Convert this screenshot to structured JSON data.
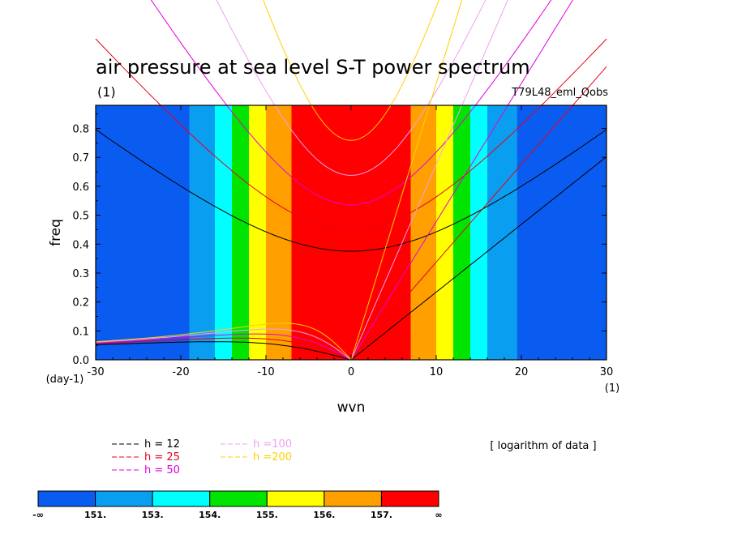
{
  "chart_data": {
    "type": "heatmap",
    "title": "air pressure at sea level S-T power spectrum",
    "units_left": "(1)",
    "experiment": "T79L48_eml_Qobs",
    "xlabel": "wvn",
    "ylabel": "freq",
    "x_units": "(1)",
    "y_units": "(day-1)",
    "xlim": [
      -30,
      30
    ],
    "ylim": [
      0,
      0.88
    ],
    "xticks": [
      -30,
      -20,
      -10,
      0,
      10,
      20,
      30
    ],
    "xtick_labels": [
      "-30",
      "-20",
      "-10",
      "0",
      "10",
      "20",
      "30"
    ],
    "yticks": [
      0,
      0.1,
      0.2,
      0.3,
      0.4,
      0.5,
      0.6,
      0.7,
      0.8
    ],
    "ytick_labels": [
      "0.0",
      "0.1",
      "0.2",
      "0.3",
      "0.4",
      "0.5",
      "0.6",
      "0.7",
      "0.8"
    ],
    "bands": [
      {
        "x0": -30,
        "x1": -19,
        "color": "#0a5cf0"
      },
      {
        "x0": -19,
        "x1": -16,
        "color": "#0a9ef0"
      },
      {
        "x0": -16,
        "x1": -14,
        "color": "#00ffff"
      },
      {
        "x0": -14,
        "x1": -12,
        "color": "#00e400"
      },
      {
        "x0": -12,
        "x1": -10,
        "color": "#ffff00"
      },
      {
        "x0": -10,
        "x1": -7,
        "color": "#ffa000"
      },
      {
        "x0": -7,
        "x1": 7,
        "color": "#ff0000"
      },
      {
        "x0": 7,
        "x1": 10,
        "color": "#ffa000"
      },
      {
        "x0": 10,
        "x1": 12,
        "color": "#ffff00"
      },
      {
        "x0": 12,
        "x1": 14,
        "color": "#00e400"
      },
      {
        "x0": 14,
        "x1": 16,
        "color": "#00ffff"
      },
      {
        "x0": 16,
        "x1": 19.5,
        "color": "#0a9ef0"
      },
      {
        "x0": 19.5,
        "x1": 30,
        "color": "#0a5cf0"
      }
    ],
    "dispersion_curves": [
      {
        "name": "h = 12",
        "h": 12,
        "color": "#000000"
      },
      {
        "name": "h = 25",
        "h": 25,
        "color": "#e8001c"
      },
      {
        "name": "h = 50",
        "h": 50,
        "color": "#e000e0"
      },
      {
        "name": "h =100",
        "h": 100,
        "color": "#f0a0f0"
      },
      {
        "name": "h =200",
        "h": 200,
        "color": "#ffd000"
      }
    ],
    "note": "[ logarithm of data ]",
    "colorbar": {
      "colors": [
        "#0a5cf0",
        "#0a9ef0",
        "#00ffff",
        "#00e400",
        "#ffff00",
        "#ffa000",
        "#ff0000"
      ],
      "labels": [
        "-∞",
        "151.",
        "153.",
        "154.",
        "155.",
        "156.",
        "157.",
        "∞"
      ]
    }
  }
}
